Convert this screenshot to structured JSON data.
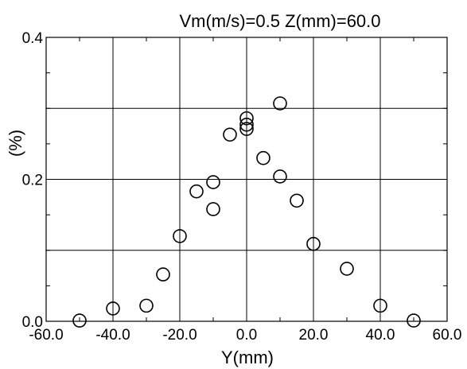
{
  "chart_data": {
    "type": "scatter",
    "title": "Vm(m/s)=0.5   Z(mm)=60.0",
    "xlabel": "Y(mm)",
    "ylabel": "(%)",
    "xlim": [
      -60,
      60
    ],
    "ylim": [
      0,
      0.4
    ],
    "xticks": [
      -60,
      -40,
      -20,
      0,
      20,
      40,
      60
    ],
    "xtick_labels": [
      "-60.0",
      "-40.0",
      "-20.0",
      "0.0",
      "20.0",
      "40.0",
      "60.0"
    ],
    "yticks": [
      0,
      0.2,
      0.4
    ],
    "ytick_labels": [
      "0.0",
      "0.2",
      "0.4"
    ],
    "grid": true,
    "gridlines_y": [
      0.1,
      0.2,
      0.3
    ],
    "marker": "open-circle",
    "points": [
      {
        "x": -50,
        "y": 0.001
      },
      {
        "x": -40,
        "y": 0.018
      },
      {
        "x": -30,
        "y": 0.022
      },
      {
        "x": -25,
        "y": 0.066
      },
      {
        "x": -20,
        "y": 0.12
      },
      {
        "x": -15,
        "y": 0.183
      },
      {
        "x": -10,
        "y": 0.196
      },
      {
        "x": -10,
        "y": 0.158
      },
      {
        "x": -5,
        "y": 0.263
      },
      {
        "x": 0,
        "y": 0.286
      },
      {
        "x": 0,
        "y": 0.277
      },
      {
        "x": 0,
        "y": 0.271
      },
      {
        "x": 5,
        "y": 0.23
      },
      {
        "x": 10,
        "y": 0.307
      },
      {
        "x": 10,
        "y": 0.204
      },
      {
        "x": 15,
        "y": 0.17
      },
      {
        "x": 20,
        "y": 0.109
      },
      {
        "x": 30,
        "y": 0.074
      },
      {
        "x": 40,
        "y": 0.022
      },
      {
        "x": 50,
        "y": 0.001
      }
    ]
  }
}
